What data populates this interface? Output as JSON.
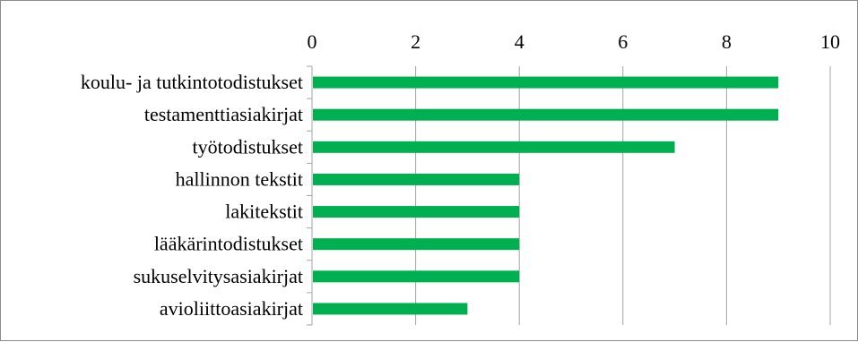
{
  "chart_data": {
    "type": "bar",
    "orientation": "horizontal",
    "categories": [
      "koulu- ja tutkintotodistukset",
      "testamenttiasiakirjat",
      "työtodistukset",
      "hallinnon tekstit",
      "lakitekstit",
      "lääkärintodistukset",
      "sukuselvitysasiakirjat",
      "avioliittoasiakirjat"
    ],
    "values": [
      9,
      9,
      7,
      4,
      4,
      4,
      4,
      3
    ],
    "xlim": [
      0,
      10
    ],
    "x_ticks": [
      "0",
      "2",
      "4",
      "6",
      "8",
      "10"
    ],
    "x_axis_position": "top",
    "grid": "vertical",
    "bar_color": "#00b050",
    "grid_color": "#a6a6a6",
    "title": "",
    "xlabel": "",
    "ylabel": ""
  }
}
